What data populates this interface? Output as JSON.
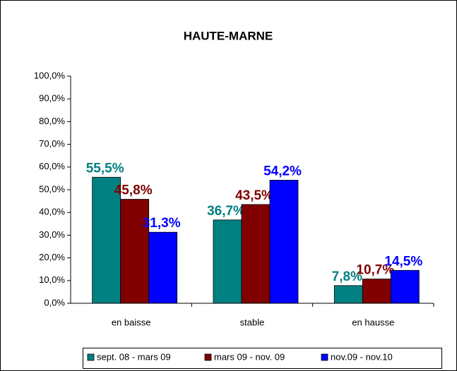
{
  "chart_data": {
    "type": "bar",
    "title": "HAUTE-MARNE",
    "categories": [
      "en baisse",
      "stable",
      "en hausse"
    ],
    "series": [
      {
        "name": "sept. 08 - mars 09",
        "color": "#008080",
        "values": [
          55.5,
          36.7,
          7.8
        ],
        "value_labels": [
          "55,5%",
          "36,7%",
          "7,8%"
        ]
      },
      {
        "name": "mars 09 - nov. 09",
        "color": "#800000",
        "values": [
          45.8,
          43.5,
          10.7
        ],
        "value_labels": [
          "45,8%",
          "43,5%",
          "10,7%"
        ]
      },
      {
        "name": "nov.09 - nov.10",
        "color": "#0000ff",
        "values": [
          31.3,
          54.2,
          14.5
        ],
        "value_labels": [
          "31,3%",
          "54,2%",
          "14,5%"
        ]
      }
    ],
    "ylim": [
      0,
      100
    ],
    "yticks": [
      {
        "value": 0,
        "label": "0,0%"
      },
      {
        "value": 10,
        "label": "10,0%"
      },
      {
        "value": 20,
        "label": "20,0%"
      },
      {
        "value": 30,
        "label": "30,0%"
      },
      {
        "value": 40,
        "label": "40,0%"
      },
      {
        "value": 50,
        "label": "50,0%"
      },
      {
        "value": 60,
        "label": "60,0%"
      },
      {
        "value": 70,
        "label": "70,0%"
      },
      {
        "value": 80,
        "label": "80,0%"
      },
      {
        "value": 90,
        "label": "90,0%"
      },
      {
        "value": 100,
        "label": "100,0%"
      }
    ],
    "grid": false,
    "legend": "bottom"
  }
}
